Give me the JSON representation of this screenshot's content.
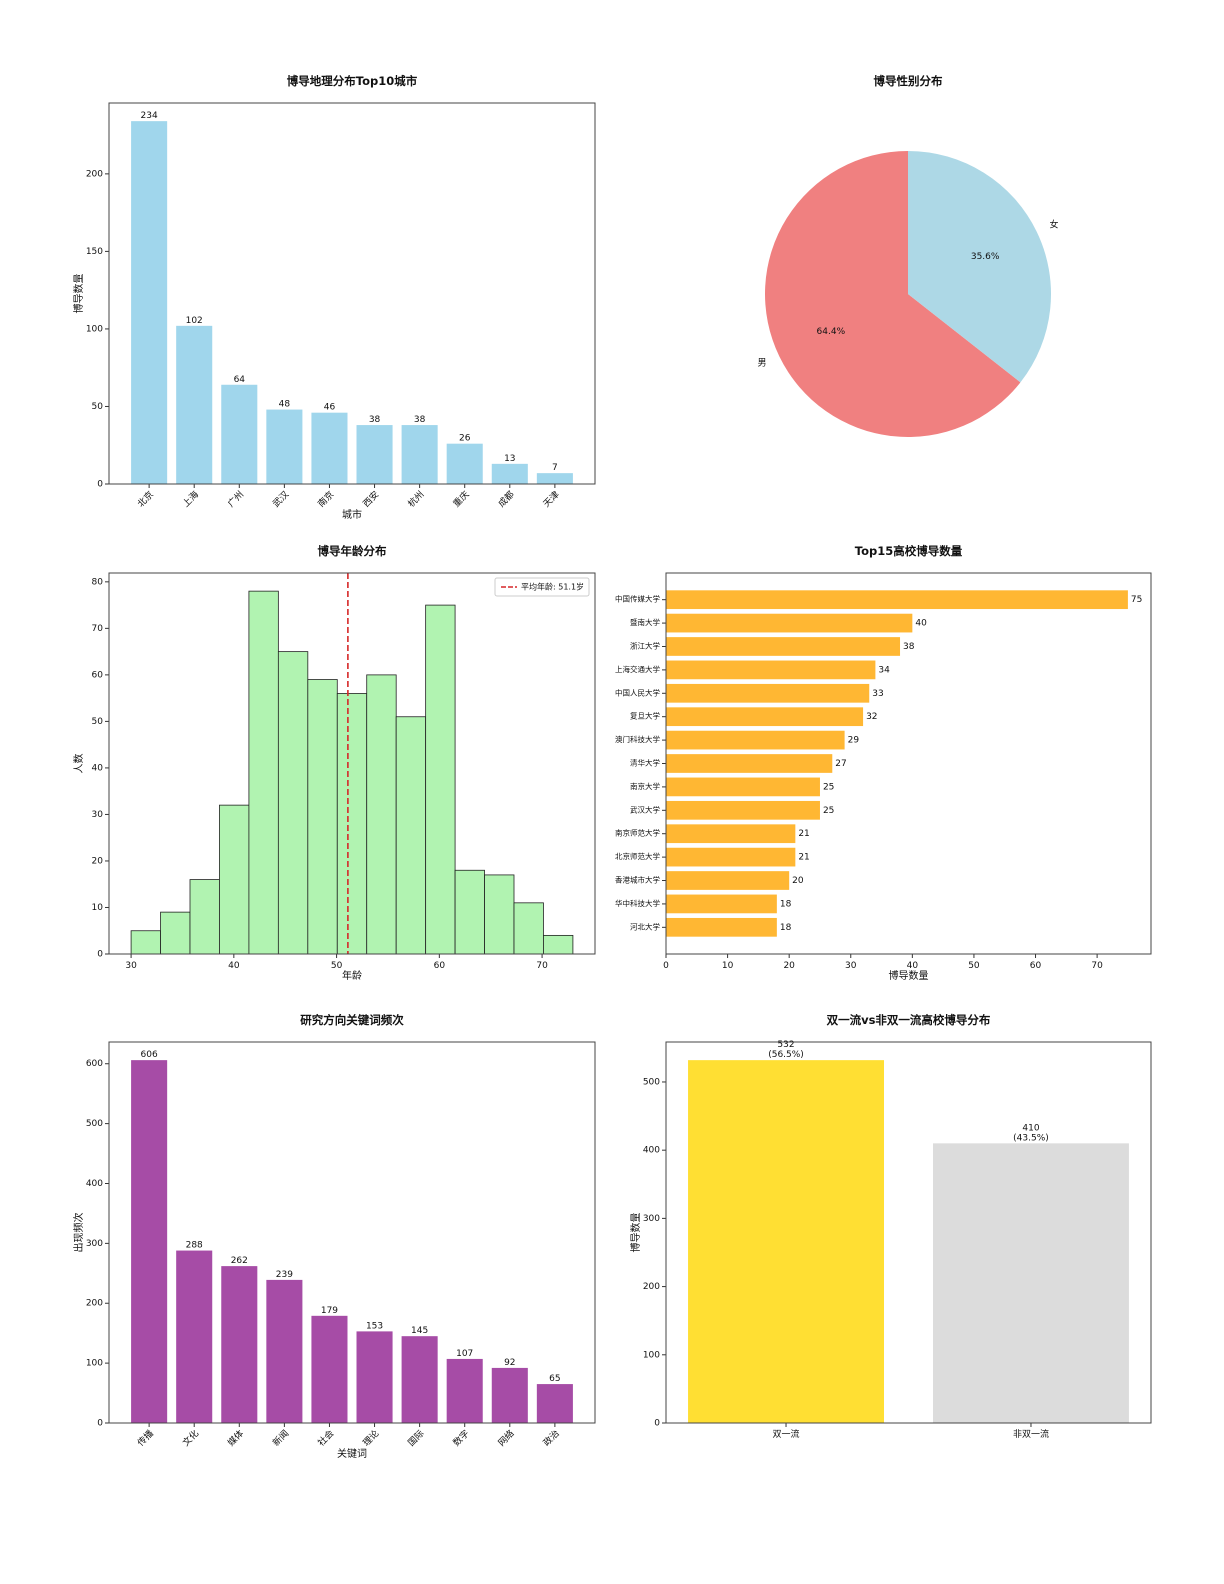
{
  "chart_data": [
    {
      "type": "bar",
      "title": "博导地理分布Top10城市",
      "x_label": "城市",
      "y_label": "博导数量",
      "categories": [
        "北京",
        "上海",
        "广州",
        "武汉",
        "南京",
        "西安",
        "杭州",
        "重庆",
        "成都",
        "天津"
      ],
      "values": [
        234,
        102,
        64,
        48,
        46,
        38,
        38,
        26,
        13,
        7
      ],
      "color": "#a0d6ec",
      "ylim": [
        0,
        245.7
      ],
      "yticks": [
        0,
        50,
        100,
        150,
        200
      ],
      "xtick_rotation": 45
    },
    {
      "type": "pie",
      "title": "博导性别分布",
      "categories": [
        "男",
        "女"
      ],
      "values": [
        64.4,
        35.6
      ],
      "value_labels": [
        "64.4%",
        "35.6%"
      ],
      "colors": [
        "#f08080",
        "#add8e6"
      ],
      "start_angle": 90
    },
    {
      "type": "histogram",
      "title": "博导年龄分布",
      "x_label": "年龄",
      "y_label": "人数",
      "bins": [
        30,
        32.867,
        35.733,
        38.6,
        41.467,
        44.333,
        47.2,
        50.067,
        52.933,
        55.8,
        58.667,
        61.533,
        64.4,
        67.267,
        70.133,
        73
      ],
      "values": [
        5,
        9,
        16,
        32,
        78,
        65,
        59,
        56,
        60,
        51,
        75,
        18,
        17,
        11,
        4
      ],
      "color": "#b1f3b1",
      "edge_color": "#222",
      "xlim": [
        27.85,
        75.15
      ],
      "xticks": [
        30,
        40,
        50,
        60,
        70
      ],
      "ylim": [
        0,
        81.9
      ],
      "yticks": [
        0,
        10,
        20,
        30,
        40,
        50,
        60,
        70,
        80
      ],
      "mean": 51.1,
      "mean_label": "平均年龄: 51.1岁",
      "mean_color": "#d62728",
      "legend": "upper right"
    },
    {
      "type": "barh",
      "title": "Top15高校博导数量",
      "x_label": "博导数量",
      "categories": [
        "中国传媒大学",
        "暨南大学",
        "浙江大学",
        "上海交通大学",
        "中国人民大学",
        "复旦大学",
        "澳门科技大学",
        "清华大学",
        "南京大学",
        "武汉大学",
        "南京师范大学",
        "北京师范大学",
        "香港城市大学",
        "华中科技大学",
        "河北大学"
      ],
      "values": [
        75,
        40,
        38,
        34,
        33,
        32,
        29,
        27,
        25,
        25,
        21,
        21,
        20,
        18,
        18
      ],
      "color": "#ffb733",
      "xlim": [
        0,
        78.75
      ],
      "xticks": [
        0,
        10,
        20,
        30,
        40,
        50,
        60,
        70
      ]
    },
    {
      "type": "bar",
      "title": "研究方向关键词频次",
      "x_label": "关键词",
      "y_label": "出现频次",
      "categories": [
        "传播",
        "文化",
        "媒体",
        "新闻",
        "社会",
        "理论",
        "国际",
        "数字",
        "网络",
        "政治"
      ],
      "values": [
        606,
        288,
        262,
        239,
        179,
        153,
        145,
        107,
        92,
        65
      ],
      "color": "#a64ca6",
      "ylim": [
        0,
        636.3
      ],
      "yticks": [
        0,
        100,
        200,
        300,
        400,
        500,
        600
      ],
      "xtick_rotation": 45
    },
    {
      "type": "bar",
      "title": "双一流vs非双一流高校博导分布",
      "y_label": "博导数量",
      "categories": [
        "双一流",
        "非双一流"
      ],
      "values": [
        532,
        410
      ],
      "value_labels": [
        "532\n(56.5%)",
        "410\n(43.5%)"
      ],
      "colors": [
        "#ffdf33",
        "#dcdcdc"
      ],
      "ylim": [
        0,
        558.6
      ],
      "yticks": [
        0,
        100,
        200,
        300,
        400,
        500
      ]
    }
  ]
}
